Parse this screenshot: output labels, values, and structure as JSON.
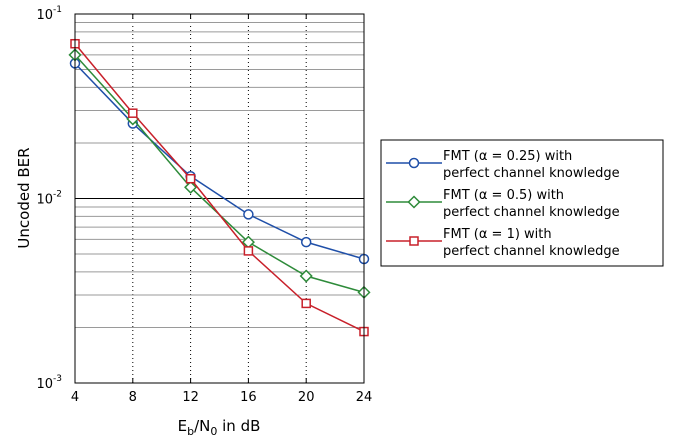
{
  "chart_data": {
    "type": "line",
    "title": "",
    "xlabel_parts": {
      "base": "E",
      "sub1": "b",
      "mid": "/N",
      "sub2": "0",
      "tail": " in dB"
    },
    "ylabel": "Uncoded BER",
    "x": [
      4,
      8,
      12,
      16,
      20,
      24
    ],
    "xlim": [
      4,
      24
    ],
    "ylim": [
      0.001,
      0.1
    ],
    "yscale": "log",
    "x_tick_labels": [
      "4",
      "8",
      "12",
      "16",
      "20",
      "24"
    ],
    "y_tick_labels": [
      {
        "base": "10",
        "exp": "-1"
      },
      {
        "base": "10",
        "exp": "-2"
      },
      {
        "base": "10",
        "exp": "-3"
      }
    ],
    "grid": true,
    "legend_position": "right",
    "series": [
      {
        "name_line1": "FMT (α = 0.25) with",
        "name_line2": "perfect channel knowledge",
        "color": "#1f4fa8",
        "marker": "circle",
        "values": [
          0.054,
          0.0255,
          0.0132,
          0.0082,
          0.0058,
          0.0047
        ]
      },
      {
        "name_line1": "FMT (α = 0.5) with",
        "name_line2": "perfect channel knowledge",
        "color": "#2e8b3a",
        "marker": "diamond",
        "values": [
          0.06,
          0.027,
          0.0115,
          0.0058,
          0.0038,
          0.0031
        ]
      },
      {
        "name_line1": "FMT (α = 1) with",
        "name_line2": "perfect channel knowledge",
        "color": "#c8202a",
        "marker": "square",
        "values": [
          0.069,
          0.029,
          0.0128,
          0.0052,
          0.0027,
          0.0019
        ]
      }
    ]
  }
}
